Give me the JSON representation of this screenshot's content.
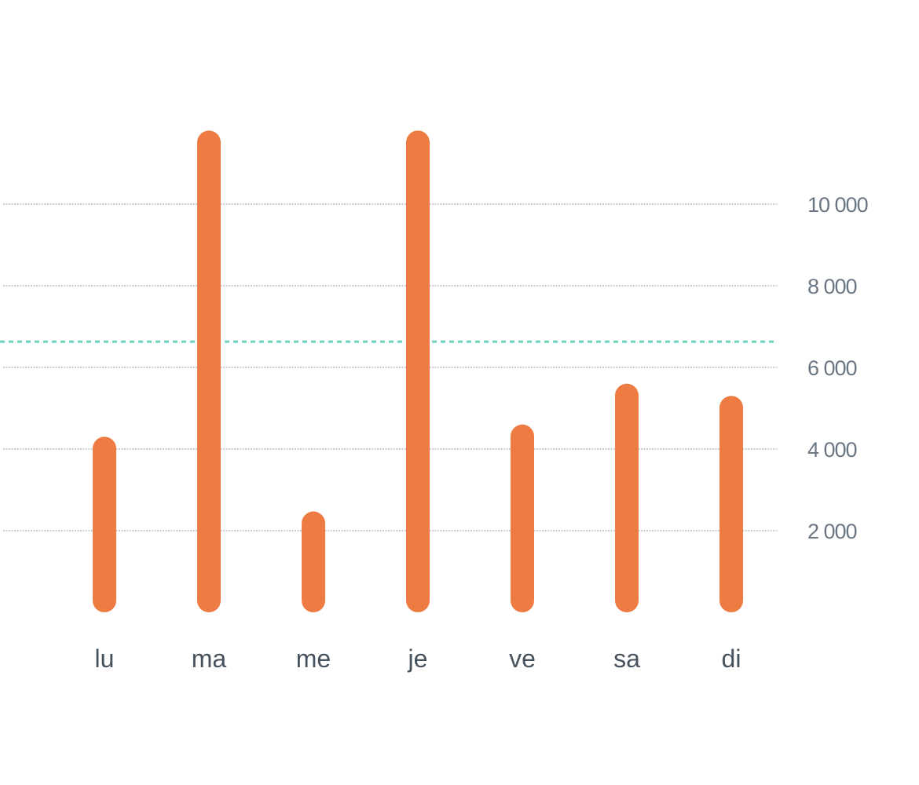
{
  "chart_data": {
    "type": "bar",
    "categories": [
      "lu",
      "ma",
      "me",
      "je",
      "ve",
      "sa",
      "di"
    ],
    "values": [
      4300,
      11800,
      2470,
      11800,
      4600,
      5600,
      5300
    ],
    "y_ticks": [
      {
        "value": 2000,
        "label": "2 000"
      },
      {
        "value": 4000,
        "label": "4 000"
      },
      {
        "value": 6000,
        "label": "6 000"
      },
      {
        "value": 8000,
        "label": "8 000"
      },
      {
        "value": 10000,
        "label": "10 000"
      }
    ],
    "reference_line": 6630,
    "ylim": [
      0,
      12000
    ],
    "yaxis_position": "right",
    "grid": true,
    "colors": {
      "bar": "#ee7c42",
      "grid": "#c9ced8",
      "reference": "#6fd3bf",
      "tick_text": "#6b7684",
      "category_text": "#47525f"
    }
  }
}
